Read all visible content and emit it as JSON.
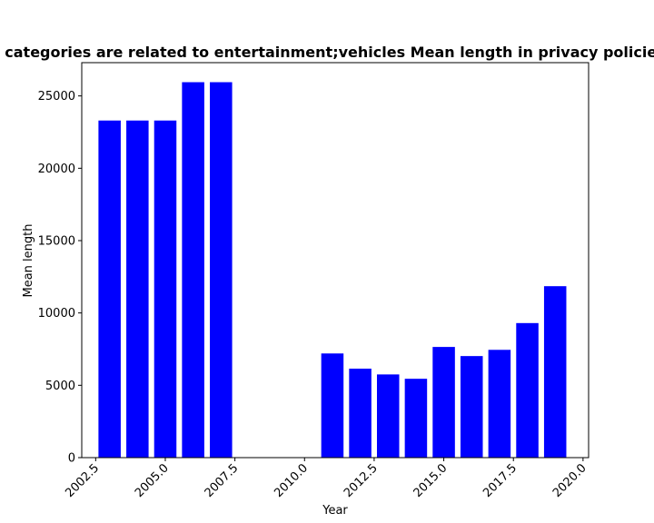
{
  "chart_data": {
    "type": "bar",
    "title": "categories are related to entertainment;vehicles Mean length in privacy policies",
    "xlabel": "Year",
    "ylabel": "Mean length",
    "x": [
      2003,
      2004,
      2005,
      2006,
      2007,
      2011,
      2012,
      2013,
      2014,
      2015,
      2016,
      2017,
      2018,
      2019
    ],
    "values": [
      23300,
      23300,
      23300,
      25950,
      25950,
      7200,
      6150,
      5750,
      5450,
      7650,
      7020,
      7450,
      9300,
      11850
    ],
    "xlim": [
      2002.0,
      2020.2
    ],
    "ylim": [
      0,
      27300
    ],
    "xticks": [
      2002.5,
      2005.0,
      2007.5,
      2010.0,
      2012.5,
      2015.0,
      2017.5,
      2020.0
    ],
    "xtick_labels": [
      "2002.5",
      "2005.0",
      "2007.5",
      "2010.0",
      "2012.5",
      "2015.0",
      "2017.5",
      "2020.0"
    ],
    "yticks": [
      0,
      5000,
      10000,
      15000,
      20000,
      25000
    ],
    "ytick_labels": [
      "0",
      "5000",
      "10000",
      "15000",
      "20000",
      "25000"
    ],
    "bar_width": 0.8,
    "bar_color": "#0000ff",
    "grid": false,
    "legend": "none"
  }
}
